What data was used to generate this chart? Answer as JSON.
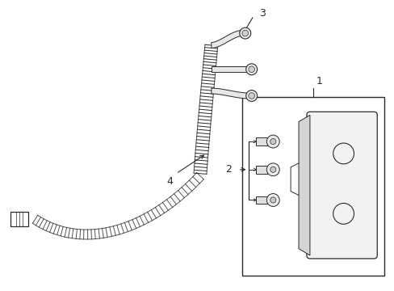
{
  "bg_color": "#ffffff",
  "line_color": "#2a2a2a",
  "label_1": "1",
  "label_2": "2",
  "label_3": "3",
  "label_4": "4",
  "figsize": [
    4.89,
    3.6
  ],
  "dpi": 100
}
